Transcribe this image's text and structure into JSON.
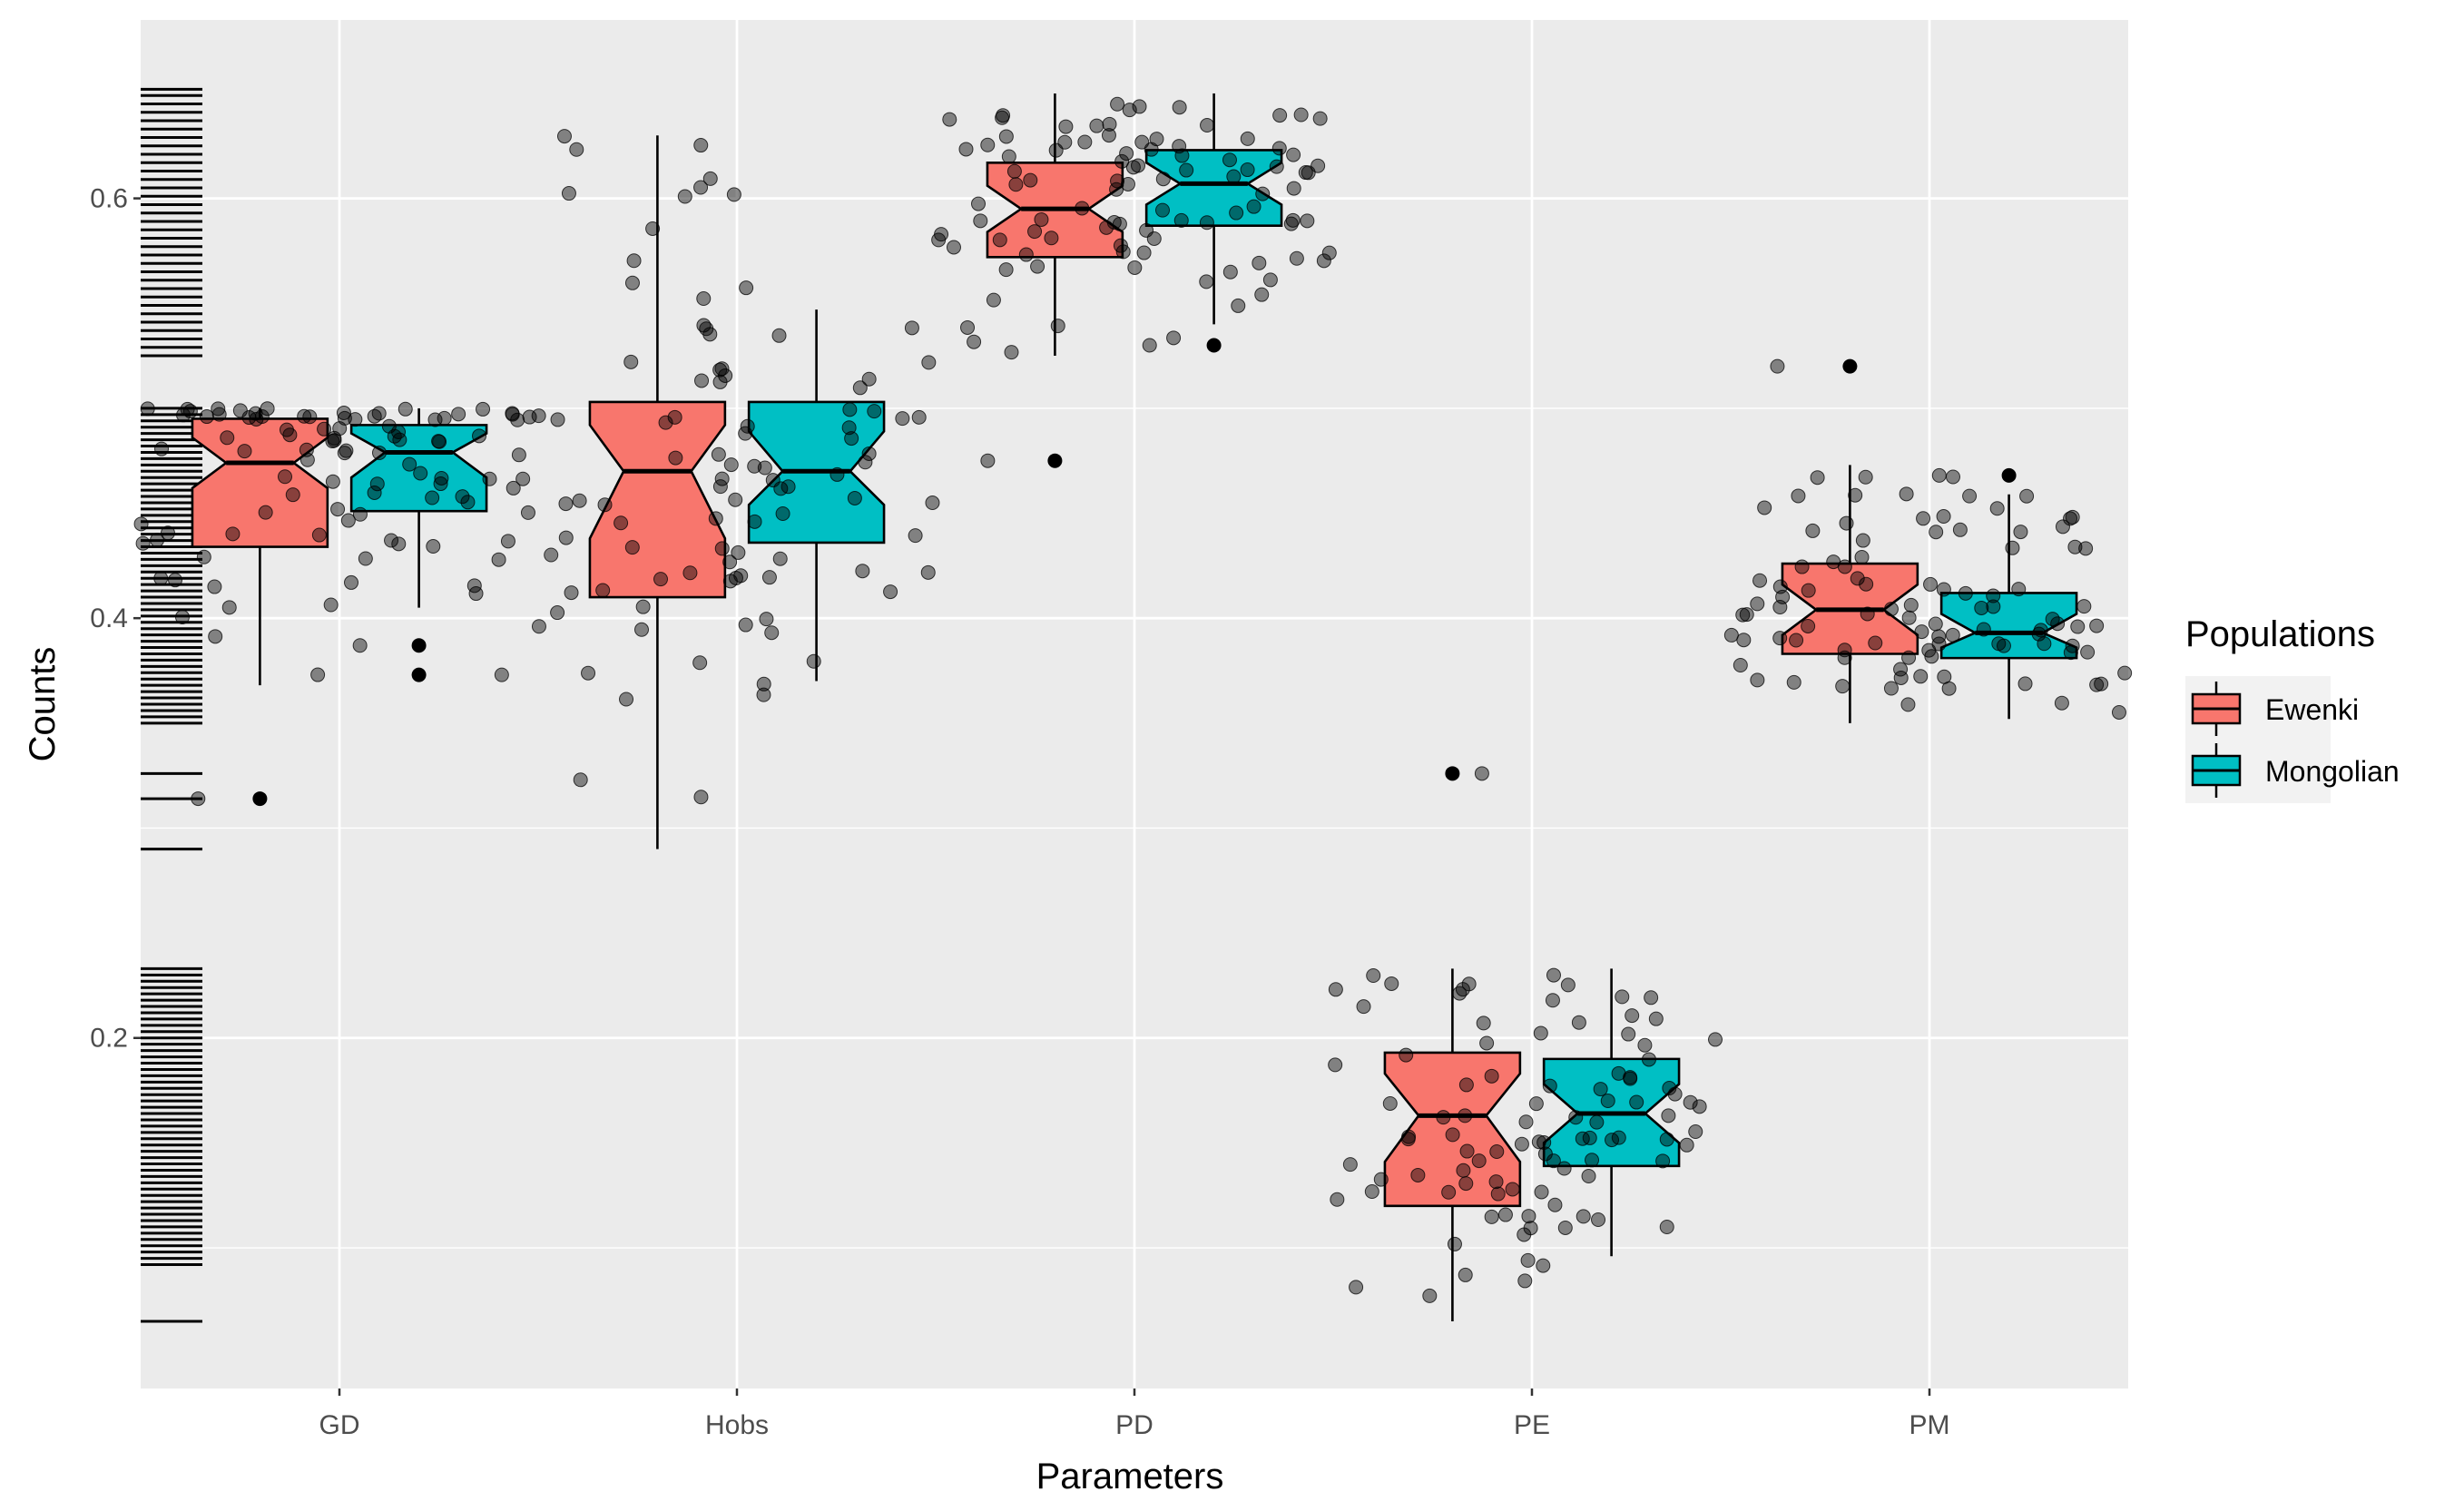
{
  "chart_data": {
    "type": "boxplot",
    "xlabel": "Parameters",
    "ylabel": "Counts",
    "categories": [
      "GD",
      "Hobs",
      "PD",
      "PE",
      "PM"
    ],
    "ylim": [
      0.033,
      0.685
    ],
    "yticks": [
      0.2,
      0.4,
      0.6
    ],
    "ytick_labels": [
      "0.2",
      "0.4",
      "0.6"
    ],
    "grid": true,
    "legend": {
      "title": "Populations",
      "position": "right",
      "entries": [
        {
          "name": "Ewenki",
          "color": "#F8766D"
        },
        {
          "name": "Mongolian",
          "color": "#00BFC4"
        }
      ]
    },
    "series": [
      {
        "name": "Ewenki",
        "color": "#F8766D",
        "boxes": [
          {
            "category": "GD",
            "lower_whisker": 0.368,
            "q1": 0.434,
            "median": 0.474,
            "q3": 0.495,
            "upper_whisker": 0.5,
            "notch_low": 0.462,
            "notch_high": 0.486,
            "outliers": [
              0.314
            ]
          },
          {
            "category": "Hobs",
            "lower_whisker": 0.29,
            "q1": 0.41,
            "median": 0.47,
            "q3": 0.503,
            "upper_whisker": 0.63,
            "notch_low": 0.438,
            "notch_high": 0.492,
            "outliers": []
          },
          {
            "category": "PD",
            "lower_whisker": 0.525,
            "q1": 0.572,
            "median": 0.595,
            "q3": 0.617,
            "upper_whisker": 0.65,
            "notch_low": 0.584,
            "notch_high": 0.606,
            "outliers": [
              0.475
            ]
          },
          {
            "category": "PE",
            "lower_whisker": 0.065,
            "q1": 0.12,
            "median": 0.163,
            "q3": 0.193,
            "upper_whisker": 0.233,
            "notch_low": 0.141,
            "notch_high": 0.183,
            "outliers": [
              0.326
            ]
          },
          {
            "category": "PM",
            "lower_whisker": 0.35,
            "q1": 0.383,
            "median": 0.404,
            "q3": 0.426,
            "upper_whisker": 0.473,
            "notch_low": 0.392,
            "notch_high": 0.416,
            "outliers": [
              0.52
            ]
          }
        ]
      },
      {
        "name": "Mongolian",
        "color": "#00BFC4",
        "boxes": [
          {
            "category": "GD",
            "lower_whisker": 0.405,
            "q1": 0.451,
            "median": 0.479,
            "q3": 0.492,
            "upper_whisker": 0.5,
            "notch_low": 0.467,
            "notch_high": 0.488,
            "outliers": [
              0.387,
              0.373
            ]
          },
          {
            "category": "Hobs",
            "lower_whisker": 0.37,
            "q1": 0.436,
            "median": 0.47,
            "q3": 0.503,
            "upper_whisker": 0.547,
            "notch_low": 0.454,
            "notch_high": 0.489,
            "outliers": []
          },
          {
            "category": "PD",
            "lower_whisker": 0.54,
            "q1": 0.587,
            "median": 0.607,
            "q3": 0.623,
            "upper_whisker": 0.65,
            "notch_low": 0.597,
            "notch_high": 0.617,
            "outliers": [
              0.53
            ]
          },
          {
            "category": "PE",
            "lower_whisker": 0.096,
            "q1": 0.139,
            "median": 0.164,
            "q3": 0.19,
            "upper_whisker": 0.233,
            "notch_low": 0.15,
            "notch_high": 0.178,
            "outliers": []
          },
          {
            "category": "PM",
            "lower_whisker": 0.352,
            "q1": 0.381,
            "median": 0.393,
            "q3": 0.412,
            "upper_whisker": 0.459,
            "notch_low": 0.386,
            "notch_high": 0.402,
            "outliers": [
              0.468
            ]
          }
        ]
      }
    ],
    "rug_y": [
      0.065,
      0.092,
      0.095,
      0.098,
      0.101,
      0.104,
      0.107,
      0.11,
      0.113,
      0.116,
      0.119,
      0.122,
      0.125,
      0.128,
      0.131,
      0.134,
      0.137,
      0.14,
      0.143,
      0.146,
      0.149,
      0.152,
      0.155,
      0.158,
      0.161,
      0.164,
      0.167,
      0.17,
      0.173,
      0.176,
      0.179,
      0.182,
      0.185,
      0.188,
      0.191,
      0.194,
      0.197,
      0.2,
      0.203,
      0.206,
      0.209,
      0.212,
      0.215,
      0.218,
      0.221,
      0.224,
      0.227,
      0.23,
      0.233,
      0.29,
      0.314,
      0.326,
      0.35,
      0.353,
      0.356,
      0.359,
      0.362,
      0.365,
      0.368,
      0.371,
      0.374,
      0.377,
      0.38,
      0.383,
      0.386,
      0.389,
      0.392,
      0.395,
      0.398,
      0.401,
      0.404,
      0.407,
      0.41,
      0.413,
      0.416,
      0.419,
      0.422,
      0.425,
      0.428,
      0.431,
      0.434,
      0.437,
      0.44,
      0.443,
      0.446,
      0.449,
      0.452,
      0.455,
      0.458,
      0.461,
      0.464,
      0.467,
      0.47,
      0.473,
      0.476,
      0.479,
      0.482,
      0.485,
      0.488,
      0.491,
      0.494,
      0.497,
      0.5,
      0.525,
      0.529,
      0.533,
      0.537,
      0.541,
      0.545,
      0.549,
      0.553,
      0.557,
      0.561,
      0.565,
      0.569,
      0.573,
      0.577,
      0.581,
      0.585,
      0.589,
      0.593,
      0.597,
      0.601,
      0.605,
      0.609,
      0.613,
      0.617,
      0.621,
      0.625,
      0.629,
      0.633,
      0.637,
      0.641,
      0.645,
      0.649,
      0.652
    ]
  }
}
